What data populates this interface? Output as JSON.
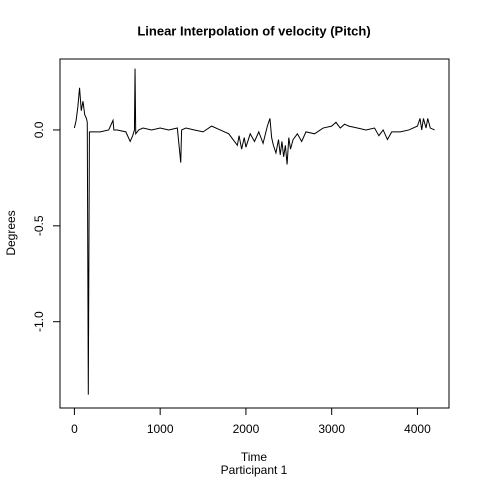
{
  "chart_data": {
    "type": "line",
    "title": "Linear Interpolation of velocity (Pitch)",
    "x_label": "Time",
    "subtitle": "Participant  1",
    "y_label": "Degrees",
    "x": [
      0,
      20,
      40,
      60,
      80,
      100,
      120,
      140,
      150,
      162,
      175,
      200,
      300,
      400,
      450,
      460,
      500,
      600,
      650,
      680,
      700,
      707,
      715,
      750,
      800,
      900,
      1000,
      1100,
      1200,
      1240,
      1250,
      1300,
      1400,
      1500,
      1600,
      1700,
      1800,
      1850,
      1900,
      1920,
      1950,
      1980,
      2000,
      2050,
      2100,
      2150,
      2200,
      2250,
      2280,
      2300,
      2320,
      2350,
      2380,
      2400,
      2420,
      2440,
      2460,
      2480,
      2500,
      2520,
      2550,
      2600,
      2650,
      2700,
      2800,
      2900,
      3000,
      3050,
      3100,
      3150,
      3200,
      3300,
      3400,
      3500,
      3550,
      3600,
      3650,
      3700,
      3800,
      3900,
      4000,
      4030,
      4050,
      4070,
      4100,
      4120,
      4150,
      4200
    ],
    "series": [
      {
        "name": "Pitch",
        "color": "#000000",
        "values": [
          0.01,
          0.05,
          0.12,
          0.22,
          0.1,
          0.15,
          0.08,
          0.06,
          0.04,
          -1.38,
          -0.01,
          -0.01,
          -0.01,
          0,
          0.05,
          0.0,
          0.0,
          -0.01,
          -0.06,
          -0.03,
          0.0,
          0.32,
          -0.02,
          0.0,
          0.01,
          0.0,
          0.01,
          0.0,
          0.01,
          -0.17,
          0.0,
          0.01,
          0.0,
          -0.01,
          0.02,
          0.0,
          -0.02,
          -0.05,
          -0.08,
          -0.03,
          -0.1,
          -0.04,
          -0.09,
          -0.02,
          -0.06,
          -0.01,
          -0.07,
          0.02,
          0.06,
          -0.04,
          -0.08,
          -0.12,
          -0.05,
          -0.13,
          -0.06,
          -0.14,
          -0.08,
          -0.18,
          -0.04,
          -0.1,
          -0.05,
          -0.02,
          -0.06,
          -0.01,
          -0.02,
          0.01,
          0.02,
          0.04,
          0.01,
          0.03,
          0.02,
          0.01,
          0.0,
          0.01,
          -0.03,
          0.0,
          -0.05,
          -0.01,
          -0.01,
          0.0,
          0.02,
          0.06,
          0.0,
          0.06,
          0.01,
          0.06,
          0.01,
          0.0
        ]
      }
    ],
    "xlim": [
      -168,
      4368
    ],
    "ylim": [
      -1.45,
      0.37
    ],
    "xticks": [
      0,
      1000,
      2000,
      3000,
      4000
    ],
    "yticks": [
      {
        "value": 0,
        "label": "0.0"
      },
      -0.5,
      {
        "value": -1,
        "label": "-1.0"
      }
    ],
    "grid": false
  }
}
